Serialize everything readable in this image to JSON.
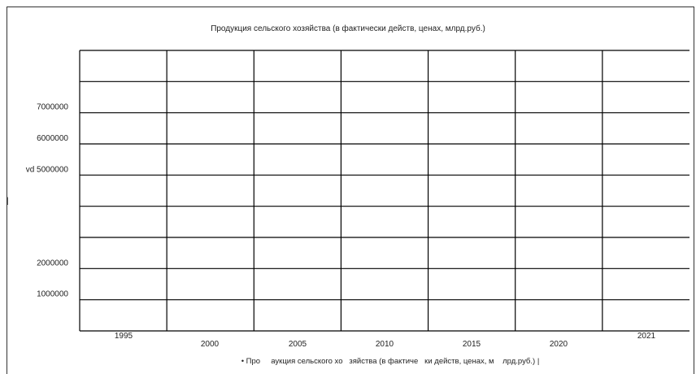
{
  "chart_data": {
    "type": "line",
    "title": "Продукция сельского хозяйства (в фактически действ, ценах, млрд.руб.)",
    "x_tick_labels": [
      "1995",
      "2000",
      "2005",
      "2010",
      "2015",
      "2020",
      "2021"
    ],
    "y_tick_labels": [
      "7000000",
      "6000000",
      "vd 5000000",
      "2000000",
      "1000000"
    ],
    "y_tick_values": [
      7000000,
      6000000,
      5000000,
      2000000,
      1000000
    ],
    "legend_text": "• Про     аукция сельского хо   зяйства (в фактиче   ки действ, ценах, м    лрд.руб.) |",
    "stray_mark": "|",
    "grid": true,
    "legend_position": "bottom",
    "colors": {
      "grid": "#000000",
      "text": "#222222",
      "background": "#ffffff"
    }
  }
}
